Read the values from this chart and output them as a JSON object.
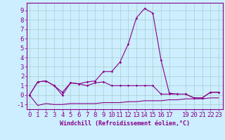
{
  "xlabel": "Windchill (Refroidissement éolien,°C)",
  "background_color": "#cceeff",
  "grid_color": "#aacccc",
  "line_color": "#880088",
  "x_ticks": [
    0,
    1,
    2,
    3,
    4,
    5,
    6,
    7,
    8,
    9,
    10,
    11,
    12,
    13,
    14,
    15,
    16,
    17,
    19,
    20,
    21,
    22,
    23
  ],
  "ylim": [
    -1.5,
    9.8
  ],
  "xlim": [
    -0.3,
    23.5
  ],
  "series1_x": [
    0,
    1,
    2,
    3,
    4,
    5,
    6,
    7,
    8,
    9,
    10,
    11,
    12,
    13,
    14,
    15,
    16,
    17,
    18,
    19,
    20,
    21,
    22,
    23
  ],
  "series1_y": [
    0.0,
    1.4,
    1.5,
    1.0,
    0.3,
    1.3,
    1.2,
    1.4,
    1.5,
    2.5,
    2.5,
    3.5,
    5.4,
    8.2,
    9.2,
    8.7,
    3.7,
    0.2,
    0.1,
    0.1,
    -0.3,
    -0.3,
    0.3,
    0.3
  ],
  "series2_x": [
    0,
    1,
    2,
    3,
    4,
    5,
    6,
    7,
    8,
    9,
    10,
    11,
    12,
    13,
    14,
    15,
    16,
    17,
    18,
    19,
    20,
    21,
    22,
    23
  ],
  "series2_y": [
    0.0,
    1.4,
    1.5,
    1.0,
    0.0,
    1.3,
    1.2,
    1.0,
    1.3,
    1.4,
    1.0,
    1.0,
    1.0,
    1.0,
    1.0,
    1.0,
    0.1,
    0.1,
    0.1,
    0.1,
    -0.3,
    -0.3,
    0.3,
    0.3
  ],
  "series3_x": [
    0,
    1,
    2,
    3,
    4,
    5,
    6,
    7,
    8,
    9,
    10,
    11,
    12,
    13,
    14,
    15,
    16,
    17,
    18,
    19,
    20,
    21,
    22,
    23
  ],
  "series3_y": [
    0.0,
    -1.1,
    -0.9,
    -1.0,
    -1.0,
    -0.9,
    -0.9,
    -0.9,
    -0.9,
    -0.8,
    -0.8,
    -0.8,
    -0.7,
    -0.7,
    -0.6,
    -0.6,
    -0.6,
    -0.5,
    -0.5,
    -0.4,
    -0.4,
    -0.4,
    -0.3,
    -0.3
  ],
  "y_ticks": [
    -1,
    0,
    1,
    2,
    3,
    4,
    5,
    6,
    7,
    8,
    9
  ],
  "xlabel_fontsize": 6,
  "tick_fontsize": 6.5,
  "marker_size": 1.8
}
